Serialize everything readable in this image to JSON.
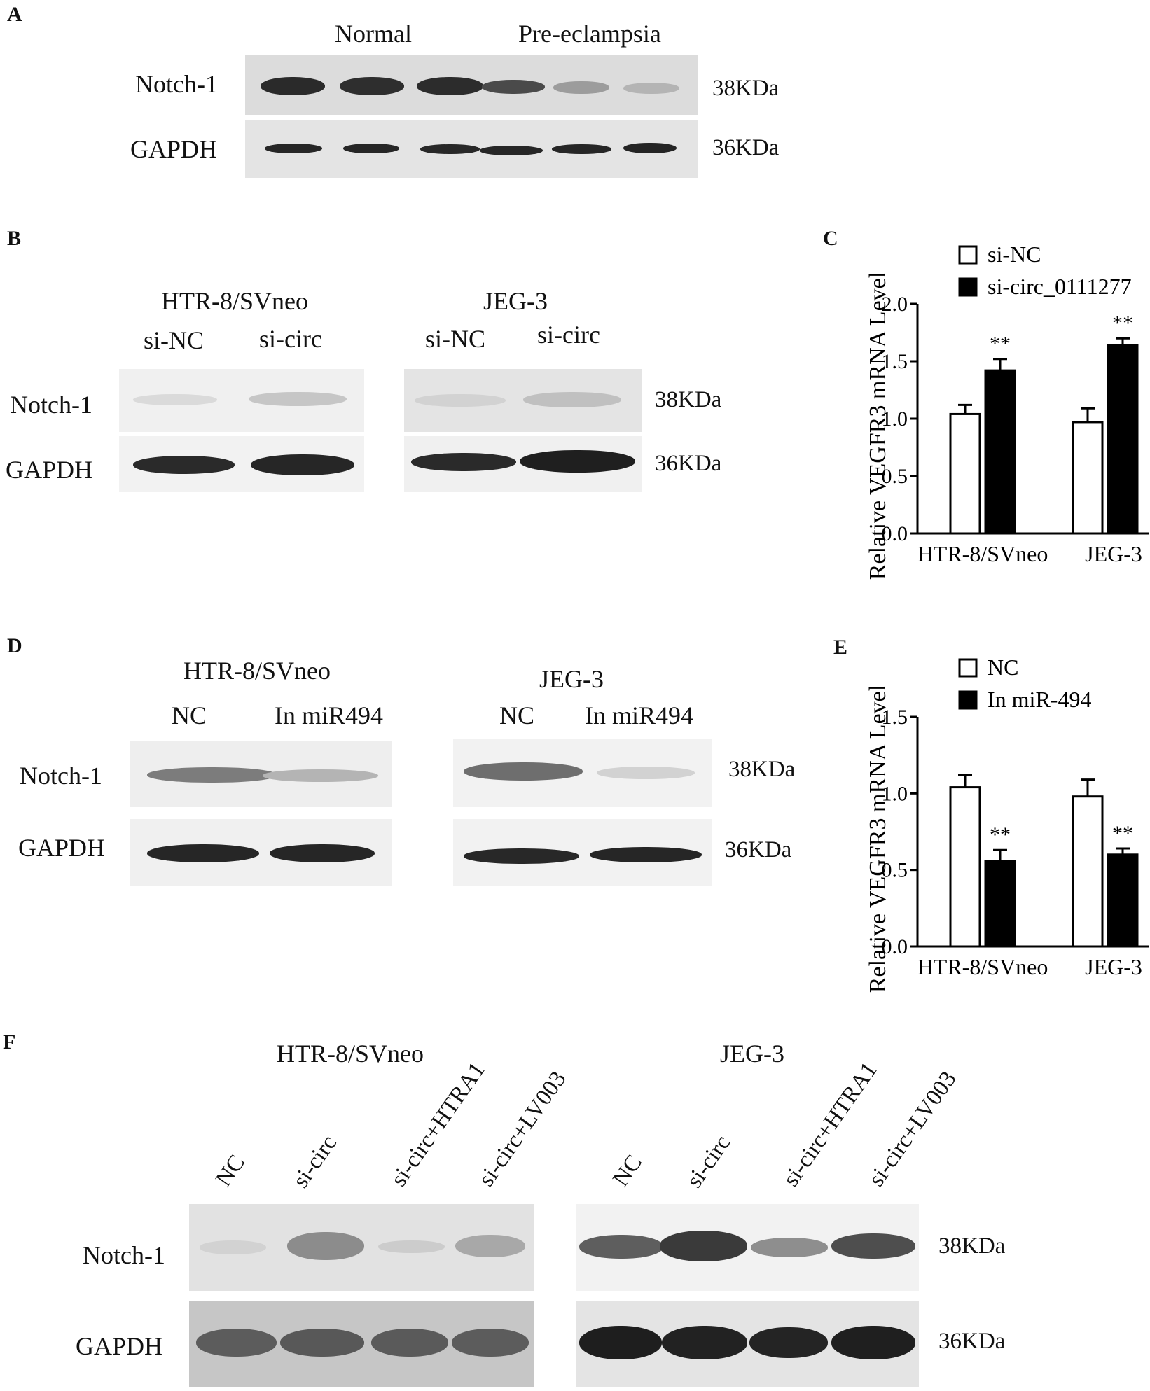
{
  "panels": {
    "A": {
      "letter": "A",
      "group_normal": "Normal",
      "group_pe": "Pre-eclampsia",
      "row1": "Notch-1",
      "row2": "GAPDH",
      "kda1": "38KDa",
      "kda2": "36KDa"
    },
    "B": {
      "letter": "B",
      "cell1": "HTR-8/SVneo",
      "cell2": "JEG-3",
      "lane1": "si-NC",
      "lane2": "si-circ",
      "lane3": "si-NC",
      "lane4": "si-circ",
      "row1": "Notch-1",
      "row2": "GAPDH",
      "kda1": "38KDa",
      "kda2": "36KDa"
    },
    "D": {
      "letter": "D",
      "cell1": "HTR-8/SVneo",
      "cell2": "JEG-3",
      "lane1": "NC",
      "lane2": "In miR494",
      "lane3": "NC",
      "lane4": "In miR494",
      "row1": "Notch-1",
      "row2": "GAPDH",
      "kda1": "38KDa",
      "kda2": "36KDa"
    },
    "F": {
      "letter": "F",
      "cell1": "HTR-8/SVneo",
      "cell2": "JEG-3",
      "lanes": [
        "NC",
        "si-circ",
        "si-circ+HTRA1",
        "si-circ+LV003"
      ],
      "row1": "Notch-1",
      "row2": "GAPDH",
      "kda1": "38KDa",
      "kda2": "36KDa"
    }
  },
  "chart_data": [
    {
      "panel": "C",
      "type": "bar",
      "ylabel": "Relative VEGFR3 mRNA Level",
      "ylim": [
        0,
        2.0
      ],
      "yticks": [
        "0.0",
        "0.5",
        "1.0",
        "1.5",
        "2.0"
      ],
      "categories": [
        "HTR-8/SVneo",
        "JEG-3"
      ],
      "series": [
        {
          "name": "si-NC",
          "values": [
            1.04,
            0.97
          ],
          "errors": [
            0.08,
            0.12
          ],
          "fill": "#ffffff"
        },
        {
          "name": "si-circ_0111277",
          "values": [
            1.42,
            1.64
          ],
          "errors": [
            0.1,
            0.06
          ],
          "fill": "#000000"
        }
      ],
      "significance": [
        "**",
        "**"
      ],
      "legend": "top-right"
    },
    {
      "panel": "E",
      "type": "bar",
      "ylabel": "Relative VEGFR3 mRNA Level",
      "ylim": [
        0,
        1.5
      ],
      "yticks": [
        "0.0",
        "0.5",
        "1.0",
        "1.5"
      ],
      "categories": [
        "HTR-8/SVneo",
        "JEG-3"
      ],
      "series": [
        {
          "name": "NC",
          "values": [
            1.04,
            0.98
          ],
          "errors": [
            0.08,
            0.11
          ],
          "fill": "#ffffff"
        },
        {
          "name": "In miR-494",
          "values": [
            0.56,
            0.6
          ],
          "errors": [
            0.07,
            0.04
          ],
          "fill": "#000000"
        }
      ],
      "significance": [
        "**",
        "**"
      ],
      "legend": "top-right"
    }
  ]
}
